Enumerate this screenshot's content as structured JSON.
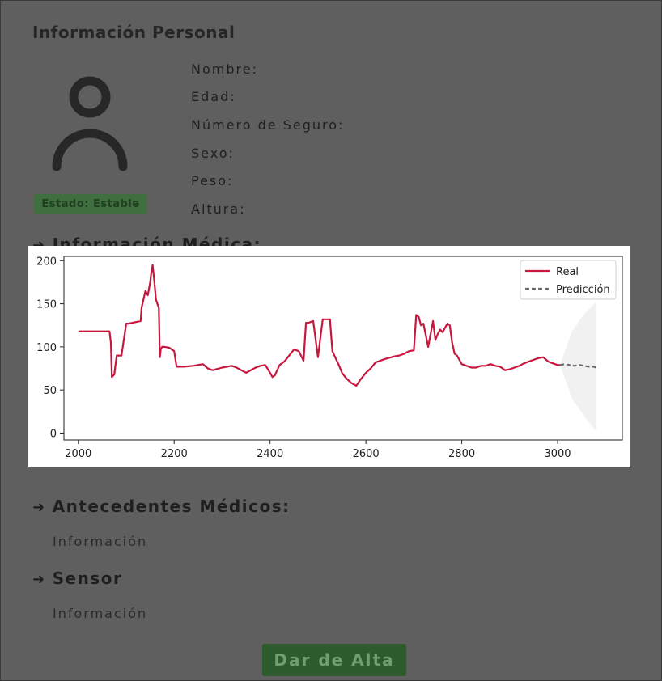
{
  "personal": {
    "title": "Información Personal",
    "status_badge": "Estado: Estable",
    "fields": {
      "nombre": "Nombre:",
      "edad": "Edad:",
      "seguro": "Número de Seguro:",
      "sexo": "Sexo:",
      "peso": "Peso:",
      "altura": "Altura:"
    }
  },
  "medical": {
    "heading": "Información Médica:",
    "arrow": "➜"
  },
  "history": {
    "heading": "Antecedentes Médicos:",
    "arrow": "➜",
    "text": "Información"
  },
  "sensor": {
    "heading": "Sensor",
    "arrow": "➜",
    "text": "Información"
  },
  "actions": {
    "discharge_label": "Dar de Alta"
  },
  "colors": {
    "accent_green": "#2e5b2e",
    "real_line": "#c8173f",
    "prediction_line": "#6b6b6b",
    "overlay": "#5f5f5f"
  },
  "icons": {
    "avatar": "user-icon",
    "arrow": "arrow-right-icon"
  },
  "chart_data": {
    "type": "line",
    "title": "",
    "xlabel": "",
    "ylabel": "",
    "xlim": [
      1970,
      3135
    ],
    "ylim": [
      -8,
      205
    ],
    "xticks": [
      "2000",
      "2200",
      "2400",
      "2600",
      "2800",
      "3000"
    ],
    "yticks": [
      "0",
      "50",
      "100",
      "150",
      "200"
    ],
    "xtick_values": [
      2000,
      2200,
      2400,
      2600,
      2800,
      3000
    ],
    "ytick_values": [
      0,
      50,
      100,
      150,
      200
    ],
    "legend_position": "top-right",
    "grid": false,
    "series": [
      {
        "name": "Real",
        "style": "solid",
        "x": [
          2000,
          2065,
          2068,
          2070,
          2075,
          2080,
          2090,
          2100,
          2105,
          2130,
          2132,
          2140,
          2145,
          2150,
          2152,
          2155,
          2158,
          2162,
          2165,
          2168,
          2170,
          2172,
          2175,
          2180,
          2190,
          2200,
          2205,
          2220,
          2240,
          2260,
          2270,
          2280,
          2300,
          2320,
          2330,
          2340,
          2350,
          2360,
          2370,
          2380,
          2390,
          2400,
          2405,
          2410,
          2420,
          2430,
          2440,
          2450,
          2460,
          2470,
          2475,
          2480,
          2490,
          2500,
          2510,
          2520,
          2525,
          2530,
          2540,
          2545,
          2550,
          2560,
          2570,
          2580,
          2590,
          2600,
          2610,
          2620,
          2640,
          2660,
          2670,
          2680,
          2690,
          2700,
          2705,
          2710,
          2715,
          2720,
          2730,
          2735,
          2740,
          2745,
          2750,
          2755,
          2760,
          2770,
          2775,
          2780,
          2785,
          2790,
          2795,
          2800,
          2810,
          2820,
          2830,
          2840,
          2850,
          2860,
          2870,
          2880,
          2890,
          2900,
          2910,
          2920,
          2930,
          2940,
          2950,
          2960,
          2970,
          2980,
          2990,
          3000,
          3005
        ],
        "y": [
          118,
          118,
          105,
          65,
          68,
          90,
          90,
          127,
          127,
          130,
          145,
          165,
          160,
          175,
          185,
          195,
          180,
          155,
          150,
          145,
          88,
          97,
          100,
          100,
          99,
          95,
          77,
          77,
          78,
          80,
          75,
          73,
          76,
          78,
          76,
          73,
          70,
          73,
          76,
          78,
          79,
          70,
          65,
          67,
          79,
          83,
          90,
          97,
          95,
          84,
          128,
          128,
          130,
          88,
          132,
          132,
          132,
          95,
          83,
          77,
          70,
          63,
          58,
          55,
          63,
          70,
          75,
          82,
          86,
          89,
          90,
          92,
          95,
          96,
          137,
          135,
          125,
          127,
          100,
          115,
          130,
          108,
          115,
          120,
          117,
          127,
          125,
          105,
          92,
          90,
          85,
          80,
          78,
          76,
          76,
          78,
          78,
          80,
          78,
          77,
          73,
          74,
          76,
          78,
          81,
          83,
          85,
          87,
          88,
          83,
          81,
          79,
          79
        ]
      },
      {
        "name": "Predicción",
        "style": "dashed",
        "x": [
          3005,
          3015,
          3025,
          3035,
          3045,
          3055,
          3065,
          3075,
          3080
        ],
        "y": [
          79,
          80,
          79,
          78,
          79,
          78,
          77,
          77,
          76
        ]
      }
    ],
    "confidence_band": {
      "x": [
        3005,
        3030,
        3055,
        3080
      ],
      "lower": [
        79,
        40,
        20,
        2
      ],
      "upper": [
        79,
        118,
        138,
        152
      ]
    }
  }
}
